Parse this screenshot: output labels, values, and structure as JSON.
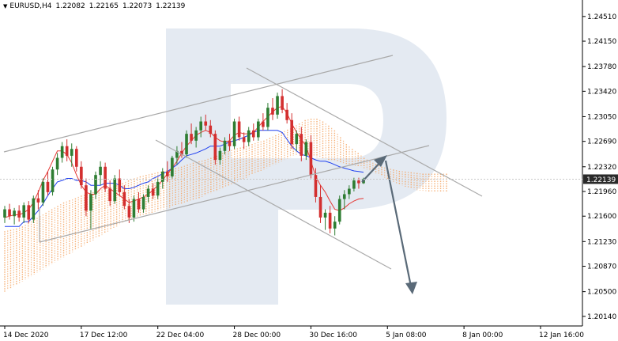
{
  "header": {
    "symbol": "EURUSD,H4",
    "open": "1.22082",
    "high": "1.22165",
    "low": "1.22073",
    "close": "1.22139"
  },
  "chart_data": {
    "type": "candlestick",
    "title": "",
    "xlabel": "",
    "ylabel": "",
    "ylim": [
      1.2,
      1.2475
    ],
    "y_ticks": [
      "1.24510",
      "1.24150",
      "1.23780",
      "1.23420",
      "1.23050",
      "1.22690",
      "1.22320",
      "1.21960",
      "1.21600",
      "1.21230",
      "1.20870",
      "1.20500",
      "1.20140"
    ],
    "y_tick_values": [
      1.2451,
      1.2415,
      1.2378,
      1.2342,
      1.2305,
      1.2269,
      1.2232,
      1.2196,
      1.216,
      1.2123,
      1.2087,
      1.205,
      1.2014
    ],
    "x_ticks": [
      "14 Dec 2020",
      "17 Dec 12:00",
      "22 Dec 04:00",
      "28 Dec 00:00",
      "30 Dec 16:00",
      "5 Jan 08:00",
      "8 Jan 00:00",
      "12 Jan 16:00"
    ],
    "x_tick_bars": [
      0,
      16,
      32,
      48,
      64,
      80,
      96,
      112
    ],
    "current_price": "1.22139",
    "current_price_value": 1.22139,
    "grid": false,
    "colors": {
      "bull": "#2e7d32",
      "bear": "#d32f2f",
      "tenkan": "#e53935",
      "kijun": "#1e3ff0",
      "cloud": "#f5a25d",
      "channel": "#a9a9a9",
      "arrow": "#5a6a78",
      "price_label_bg": "#2a2a2a",
      "watermark": "#dbe3ee"
    },
    "candles": [
      [
        1.2158,
        1.2175,
        1.215,
        1.217
      ],
      [
        1.217,
        1.2178,
        1.2155,
        1.216
      ],
      [
        1.216,
        1.2172,
        1.2148,
        1.2168
      ],
      [
        1.2168,
        1.2176,
        1.2152,
        1.2158
      ],
      [
        1.2158,
        1.218,
        1.215,
        1.2176
      ],
      [
        1.2176,
        1.2182,
        1.215,
        1.2155
      ],
      [
        1.2155,
        1.219,
        1.215,
        1.2186
      ],
      [
        1.2186,
        1.2198,
        1.217,
        1.218
      ],
      [
        1.218,
        1.2215,
        1.2175,
        1.221
      ],
      [
        1.221,
        1.2225,
        1.219,
        1.2195
      ],
      [
        1.2195,
        1.2232,
        1.219,
        1.2228
      ],
      [
        1.2228,
        1.2252,
        1.222,
        1.2245
      ],
      [
        1.2245,
        1.2268,
        1.2238,
        1.2262
      ],
      [
        1.2262,
        1.2272,
        1.224,
        1.2248
      ],
      [
        1.2248,
        1.2266,
        1.2232,
        1.2258
      ],
      [
        1.2258,
        1.2262,
        1.2225,
        1.2232
      ],
      [
        1.2232,
        1.224,
        1.22,
        1.2205
      ],
      [
        1.2205,
        1.2215,
        1.216,
        1.2168
      ],
      [
        1.2168,
        1.2198,
        1.214,
        1.2192
      ],
      [
        1.2192,
        1.2225,
        1.2185,
        1.222
      ],
      [
        1.222,
        1.224,
        1.2205,
        1.2232
      ],
      [
        1.2232,
        1.2238,
        1.2195,
        1.22
      ],
      [
        1.22,
        1.2212,
        1.2175,
        1.2182
      ],
      [
        1.2182,
        1.222,
        1.2178,
        1.2215
      ],
      [
        1.2215,
        1.2228,
        1.219,
        1.2195
      ],
      [
        1.2195,
        1.2205,
        1.217,
        1.2175
      ],
      [
        1.2175,
        1.2185,
        1.215,
        1.2158
      ],
      [
        1.2158,
        1.219,
        1.2152,
        1.2185
      ],
      [
        1.2185,
        1.2195,
        1.2165,
        1.217
      ],
      [
        1.217,
        1.2192,
        1.2165,
        1.2188
      ],
      [
        1.2188,
        1.2205,
        1.218,
        1.22
      ],
      [
        1.22,
        1.2208,
        1.2185,
        1.219
      ],
      [
        1.219,
        1.2215,
        1.2185,
        1.221
      ],
      [
        1.221,
        1.223,
        1.22,
        1.2225
      ],
      [
        1.2225,
        1.224,
        1.221,
        1.2218
      ],
      [
        1.2218,
        1.2248,
        1.2215,
        1.2245
      ],
      [
        1.2245,
        1.2262,
        1.2235,
        1.2255
      ],
      [
        1.2255,
        1.2268,
        1.2245,
        1.225
      ],
      [
        1.225,
        1.2285,
        1.2245,
        1.228
      ],
      [
        1.228,
        1.2295,
        1.2265,
        1.227
      ],
      [
        1.227,
        1.229,
        1.226,
        1.2285
      ],
      [
        1.2285,
        1.2305,
        1.2275,
        1.2298
      ],
      [
        1.2298,
        1.2308,
        1.2285,
        1.2292
      ],
      [
        1.2292,
        1.23,
        1.2275,
        1.228
      ],
      [
        1.228,
        1.2285,
        1.2235,
        1.2242
      ],
      [
        1.2242,
        1.226,
        1.2235,
        1.2255
      ],
      [
        1.2255,
        1.2275,
        1.225,
        1.227
      ],
      [
        1.227,
        1.228,
        1.2255,
        1.2262
      ],
      [
        1.2262,
        1.2302,
        1.2258,
        1.2298
      ],
      [
        1.2298,
        1.2305,
        1.227,
        1.2275
      ],
      [
        1.2275,
        1.2282,
        1.2258,
        1.2268
      ],
      [
        1.2268,
        1.229,
        1.2262,
        1.2285
      ],
      [
        1.2285,
        1.2295,
        1.227,
        1.2275
      ],
      [
        1.2275,
        1.2302,
        1.227,
        1.2298
      ],
      [
        1.2298,
        1.231,
        1.2285,
        1.229
      ],
      [
        1.229,
        1.2325,
        1.2285,
        1.2318
      ],
      [
        1.2318,
        1.2332,
        1.23,
        1.2308
      ],
      [
        1.2308,
        1.234,
        1.2302,
        1.2335
      ],
      [
        1.2335,
        1.2345,
        1.231,
        1.2315
      ],
      [
        1.2315,
        1.2325,
        1.2295,
        1.23
      ],
      [
        1.23,
        1.231,
        1.2258,
        1.2265
      ],
      [
        1.2265,
        1.2285,
        1.2255,
        1.228
      ],
      [
        1.228,
        1.229,
        1.224,
        1.2248
      ],
      [
        1.2248,
        1.2272,
        1.2242,
        1.2268
      ],
      [
        1.2268,
        1.2278,
        1.2215,
        1.222
      ],
      [
        1.222,
        1.223,
        1.218,
        1.2188
      ],
      [
        1.2188,
        1.2205,
        1.215,
        1.2158
      ],
      [
        1.2158,
        1.217,
        1.214,
        1.2165
      ],
      [
        1.2165,
        1.2175,
        1.2135,
        1.2142
      ],
      [
        1.2142,
        1.216,
        1.2132,
        1.2152
      ],
      [
        1.2152,
        1.219,
        1.2148,
        1.2185
      ],
      [
        1.2185,
        1.2198,
        1.217,
        1.2192
      ],
      [
        1.2192,
        1.2205,
        1.2185,
        1.22
      ],
      [
        1.22,
        1.2216,
        1.2196,
        1.2212
      ],
      [
        1.2212,
        1.2216,
        1.22,
        1.2208
      ],
      [
        1.2208,
        1.2216,
        1.2207,
        1.2214
      ]
    ],
    "tenkan": [
      1.2158,
      1.216,
      1.2162,
      1.2162,
      1.2165,
      1.217,
      1.218,
      1.2195,
      1.2212,
      1.2225,
      1.224,
      1.2255,
      1.2255,
      1.225,
      1.2238,
      1.222,
      1.2205,
      1.2195,
      1.2192,
      1.2192,
      1.22,
      1.2205,
      1.22,
      1.2195,
      1.219,
      1.2185,
      1.218,
      1.2182,
      1.2185,
      1.2188,
      1.2192,
      1.2198,
      1.2205,
      1.2212,
      1.2222,
      1.223,
      1.224,
      1.2252,
      1.2262,
      1.227,
      1.2278,
      1.2282,
      1.2285,
      1.2282,
      1.2275,
      1.227,
      1.2268,
      1.227,
      1.2278,
      1.2282,
      1.228,
      1.228,
      1.2282,
      1.229,
      1.2298,
      1.2305,
      1.2312,
      1.2318,
      1.232,
      1.231,
      1.2295,
      1.2282,
      1.2272,
      1.2262,
      1.224,
      1.2218,
      1.2205,
      1.2195,
      1.2182,
      1.217,
      1.2168,
      1.2172,
      1.2178,
      1.2182,
      1.2185,
      1.2186
    ],
    "kijun": [
      1.2145,
      1.2145,
      1.2145,
      1.2145,
      1.2152,
      1.2152,
      1.216,
      1.2168,
      1.2178,
      1.219,
      1.22,
      1.221,
      1.2212,
      1.2215,
      1.2215,
      1.2212,
      1.2212,
      1.221,
      1.2205,
      1.2205,
      1.2205,
      1.2208,
      1.2208,
      1.2208,
      1.2205,
      1.22,
      1.22,
      1.2202,
      1.2205,
      1.2208,
      1.221,
      1.2215,
      1.2218,
      1.2222,
      1.2225,
      1.223,
      1.2235,
      1.2242,
      1.2248,
      1.225,
      1.2252,
      1.2255,
      1.2258,
      1.2262,
      1.2262,
      1.2262,
      1.2265,
      1.2268,
      1.227,
      1.2272,
      1.2275,
      1.2278,
      1.2282,
      1.2285,
      1.2285,
      1.2285,
      1.2285,
      1.2285,
      1.2282,
      1.2272,
      1.2262,
      1.2255,
      1.225,
      1.2248,
      1.2245,
      1.2242,
      1.224,
      1.224,
      1.2238,
      1.2235,
      1.2232,
      1.223,
      1.2228,
      1.2226,
      1.2225,
      1.2224
    ],
    "cloud_upper": [
      1.2138,
      1.214,
      1.2142,
      1.2145,
      1.215,
      1.2155,
      1.216,
      1.2165,
      1.217,
      1.2175,
      1.218,
      1.2183,
      1.2186,
      1.219,
      1.2192,
      1.2195,
      1.2198,
      1.22,
      1.2202,
      1.2205,
      1.2208,
      1.2212,
      1.2215,
      1.2218,
      1.222,
      1.2222,
      1.2224,
      1.2226,
      1.2228,
      1.223,
      1.2232,
      1.2235,
      1.2238,
      1.224,
      1.2242,
      1.2245,
      1.2248,
      1.2252,
      1.2255,
      1.2258,
      1.226,
      1.2262,
      1.2265,
      1.2268,
      1.227,
      1.2274,
      1.2278,
      1.2282,
      1.2286,
      1.229,
      1.2295,
      1.23,
      1.2302,
      1.2302,
      1.2298,
      1.2292,
      1.2285,
      1.2275,
      1.2265,
      1.2258,
      1.2252,
      1.2245,
      1.224,
      1.2236,
      1.2232,
      1.223,
      1.2228,
      1.2226,
      1.2225,
      1.2224,
      1.2223,
      1.2222,
      1.2222,
      1.2222,
      1.2222,
      1.2222
    ],
    "cloud_lower": [
      1.205,
      1.2055,
      1.206,
      1.2065,
      1.207,
      1.2075,
      1.208,
      1.2085,
      1.209,
      1.2095,
      1.21,
      1.2105,
      1.211,
      1.2115,
      1.212,
      1.2125,
      1.213,
      1.2135,
      1.214,
      1.2145,
      1.215,
      1.2155,
      1.2158,
      1.216,
      1.2162,
      1.2165,
      1.2168,
      1.217,
      1.2172,
      1.2175,
      1.2178,
      1.218,
      1.2183,
      1.2186,
      1.219,
      1.2193,
      1.2196,
      1.22,
      1.2204,
      1.2208,
      1.2212,
      1.2216,
      1.222,
      1.2224,
      1.2228,
      1.2232,
      1.2236,
      1.224,
      1.2244,
      1.2248,
      1.225,
      1.225,
      1.2248,
      1.2246,
      1.2244,
      1.2242,
      1.224,
      1.2238,
      1.2236,
      1.2234,
      1.2232,
      1.223,
      1.2226,
      1.2222,
      1.2218,
      1.2214,
      1.221,
      1.2206,
      1.2203,
      1.22,
      1.2198,
      1.2197,
      1.2196,
      1.2196,
      1.2196,
      1.2196
    ]
  }
}
